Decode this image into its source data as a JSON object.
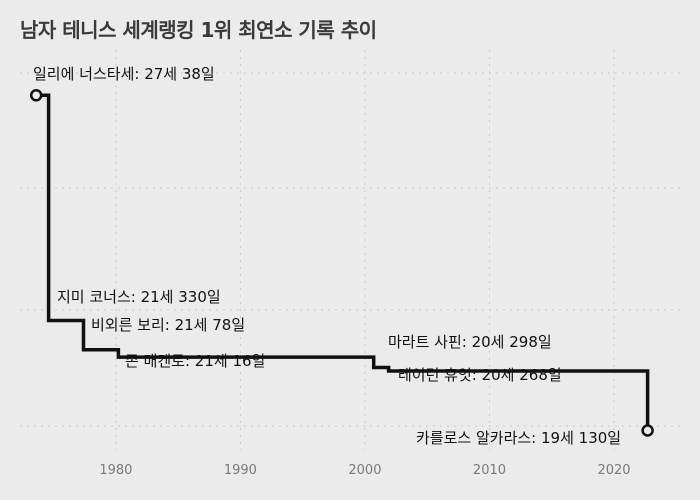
{
  "chart_data": {
    "type": "line",
    "title": "남자 테니스 세계랭킹 1위 최연소 기록 추이",
    "xlabel": "",
    "ylabel": "",
    "x_ticks": [
      1980,
      1990,
      2000,
      2010,
      2020
    ],
    "xlim": [
      1972.3,
      2025.3
    ],
    "ylim": [
      6900,
      10300
    ],
    "grid": true,
    "line_color": "#111111",
    "series": [
      {
        "values": [
          {
            "x": 1973.6,
            "y": 9900
          },
          {
            "x": 1974.6,
            "y": 9900
          },
          {
            "x": 1974.6,
            "y": 7995
          },
          {
            "x": 1977.4,
            "y": 7995
          },
          {
            "x": 1977.4,
            "y": 7748
          },
          {
            "x": 1980.2,
            "y": 7748
          },
          {
            "x": 1980.2,
            "y": 7686
          },
          {
            "x": 2000.7,
            "y": 7686
          },
          {
            "x": 2000.7,
            "y": 7598
          },
          {
            "x": 2001.9,
            "y": 7598
          },
          {
            "x": 2001.9,
            "y": 7568
          },
          {
            "x": 2022.7,
            "y": 7568
          },
          {
            "x": 2022.7,
            "y": 7065
          }
        ]
      }
    ],
    "start_marker": {
      "x": 1973.6,
      "y": 9900
    },
    "end_marker": {
      "x": 2022.7,
      "y": 7065
    },
    "annotations": [
      {
        "text": "일리에 너스타세: 27세 38일",
        "x": 1973.6,
        "y": 9900
      },
      {
        "text": "지미 코너스: 21세 330일",
        "x": 1974.6,
        "y": 7995
      },
      {
        "text": "비외른 보리: 21세 78일",
        "x": 1977.4,
        "y": 7748
      },
      {
        "text": "존 매켄로: 21세 16일",
        "x": 1980.2,
        "y": 7686
      },
      {
        "text": "마라트 사핀: 20세 298일",
        "x": 2000.7,
        "y": 7598
      },
      {
        "text": "레이턴 휴잇: 20세 268일",
        "x": 2001.9,
        "y": 7568
      },
      {
        "text": "카를로스 알카라스: 19세 130일",
        "x": 2022.7,
        "y": 7065
      }
    ]
  }
}
